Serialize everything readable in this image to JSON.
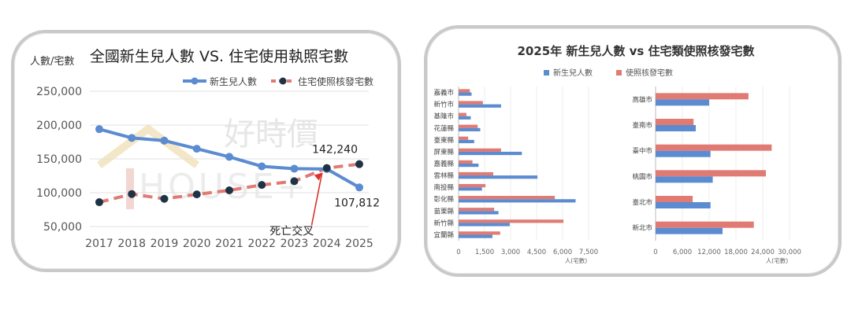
{
  "chart_data": [
    {
      "type": "line",
      "title": "全國新生兒人數 VS. 住宅使用執照宅數",
      "ylabel": "人數/宅數",
      "xlabel": "",
      "x": [
        "2017",
        "2018",
        "2019",
        "2020",
        "2021",
        "2022",
        "2023",
        "2024",
        "2025"
      ],
      "ylim": [
        50000,
        250000
      ],
      "y_ticks": [
        "50,000",
        "100,000",
        "150,000",
        "200,000",
        "250,000"
      ],
      "grid": true,
      "legend_position": "top-right",
      "series": [
        {
          "name": "新生兒人數",
          "color": "#5b8bd0",
          "style": "solid",
          "values": [
            194000,
            181000,
            177000,
            165000,
            153000,
            139000,
            135500,
            135000,
            107812
          ]
        },
        {
          "name": "住宅使照核發宅數",
          "color": "#e07a73",
          "style": "dashed",
          "values": [
            86000,
            98000,
            91000,
            97500,
            103500,
            111500,
            117000,
            136500,
            142240
          ]
        }
      ],
      "annotations": [
        {
          "text": "142,240"
        },
        {
          "text": "107,812"
        },
        {
          "text": "死亡交叉"
        }
      ],
      "watermark": [
        "好時價",
        "HOUSE+"
      ]
    },
    {
      "type": "bar",
      "orientation": "horizontal",
      "title": "2025年 新生兒人數 vs 住宅類使照核發宅數",
      "legend_position": "top-left",
      "series_names": [
        "新生兒人數",
        "使照核發宅數"
      ],
      "series_colors": [
        "#5b8bd0",
        "#e07a73"
      ],
      "xlabel": "人(宅數)",
      "panels": [
        {
          "categories": [
            "嘉義市",
            "新竹市",
            "基隆市",
            "花蓮縣",
            "臺東縣",
            "屏東縣",
            "嘉義縣",
            "雲林縣",
            "南投縣",
            "彰化縣",
            "苗栗縣",
            "新竹縣",
            "宜蘭縣"
          ],
          "series": [
            {
              "name": "新生兒人數",
              "values": [
                750,
                2450,
                700,
                1250,
                900,
                3650,
                1150,
                4550,
                1350,
                6750,
                2300,
                2950,
                1950
              ]
            },
            {
              "name": "使照核發宅數",
              "values": [
                650,
                1400,
                450,
                1100,
                550,
                2450,
                800,
                2000,
                1550,
                5550,
                2050,
                6050,
                2400
              ]
            }
          ],
          "xlim": [
            0,
            7500
          ],
          "x_ticks": [
            "0",
            "1,500",
            "3,000",
            "4,500",
            "6,000",
            "7,500"
          ]
        },
        {
          "categories": [
            "高雄市",
            "臺南市",
            "臺中市",
            "桃園市",
            "臺北市",
            "新北市"
          ],
          "series": [
            {
              "name": "新生兒人數",
              "values": [
                12000,
                9000,
                12300,
                12800,
                12300,
                15000
              ]
            },
            {
              "name": "使照核發宅數",
              "values": [
                20800,
                8500,
                26000,
                24700,
                8300,
                22000
              ]
            }
          ],
          "xlim": [
            0,
            30000
          ],
          "x_ticks": [
            "0",
            "6,000",
            "12,000",
            "18,000",
            "24,000",
            "30,000"
          ]
        }
      ]
    }
  ]
}
